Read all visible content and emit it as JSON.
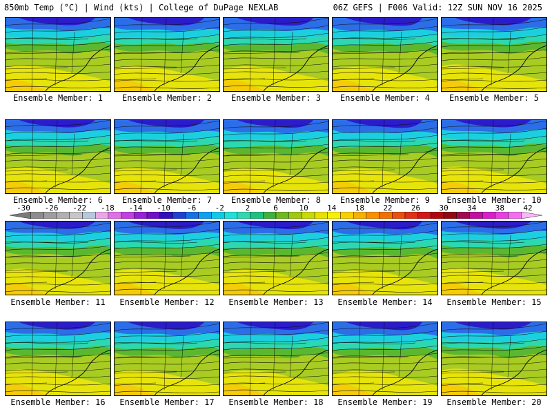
{
  "header": {
    "left": "850mb Temp (°C) | Wind (kts) | College of DuPage NEXLAB",
    "right": "06Z GEFS | F006 Valid: 12Z SUN NOV 16 2025"
  },
  "caption_prefix": "Ensemble Member:",
  "members": [
    {
      "label": "Ensemble Member: 1",
      "number": 1
    },
    {
      "label": "Ensemble Member: 2",
      "number": 2
    },
    {
      "label": "Ensemble Member: 3",
      "number": 3
    },
    {
      "label": "Ensemble Member: 4",
      "number": 4
    },
    {
      "label": "Ensemble Member: 5",
      "number": 5
    },
    {
      "label": "Ensemble Member: 6",
      "number": 6
    },
    {
      "label": "Ensemble Member: 7",
      "number": 7
    },
    {
      "label": "Ensemble Member: 8",
      "number": 8
    },
    {
      "label": "Ensemble Member: 9",
      "number": 9
    },
    {
      "label": "Ensemble Member: 10",
      "number": 10
    },
    {
      "label": "Ensemble Member: 11",
      "number": 11
    },
    {
      "label": "Ensemble Member: 12",
      "number": 12
    },
    {
      "label": "Ensemble Member: 13",
      "number": 13
    },
    {
      "label": "Ensemble Member: 14",
      "number": 14
    },
    {
      "label": "Ensemble Member: 15",
      "number": 15
    },
    {
      "label": "Ensemble Member: 16",
      "number": 16
    },
    {
      "label": "Ensemble Member: 17",
      "number": 17
    },
    {
      "label": "Ensemble Member: 18",
      "number": 18
    },
    {
      "label": "Ensemble Member: 19",
      "number": 19
    },
    {
      "label": "Ensemble Member: 20",
      "number": 20
    }
  ],
  "colorbar": {
    "labels": [
      "-30",
      "-26",
      "-22",
      "-18",
      "-14",
      "-10",
      "-6",
      "-2",
      "2",
      "6",
      "10",
      "14",
      "18",
      "22",
      "26",
      "30",
      "34",
      "38",
      "42"
    ],
    "colors": [
      "#7a7a7a",
      "#8c8c8c",
      "#9e9e9e",
      "#b0b0b0",
      "#c6c6c6",
      "#b8c8dc",
      "#e8a8e8",
      "#e070e8",
      "#c040e0",
      "#9820d8",
      "#7010c8",
      "#3010b8",
      "#2040d0",
      "#1870e8",
      "#10a0f0",
      "#10c8e8",
      "#20e0d8",
      "#30d8b0",
      "#20c080",
      "#40b040",
      "#70b820",
      "#a0c810",
      "#c8d808",
      "#e8e000",
      "#f8f000",
      "#f8d000",
      "#f8b000",
      "#f89000",
      "#f07000",
      "#e85010",
      "#e03018",
      "#d01818",
      "#b00810",
      "#900810",
      "#a00850",
      "#c010a0",
      "#d820c8",
      "#e840e0",
      "#f070f0",
      "#f8b8f8"
    ]
  },
  "colors": {
    "deep_blue": "#2a1cc8",
    "blue": "#2c6ee8",
    "cyan": "#1ccfe0",
    "teal": "#2cd8b0",
    "green": "#5ab830",
    "yellow_green": "#a9cc22",
    "yellow": "#e6e40a",
    "gold": "#f4cc08"
  }
}
